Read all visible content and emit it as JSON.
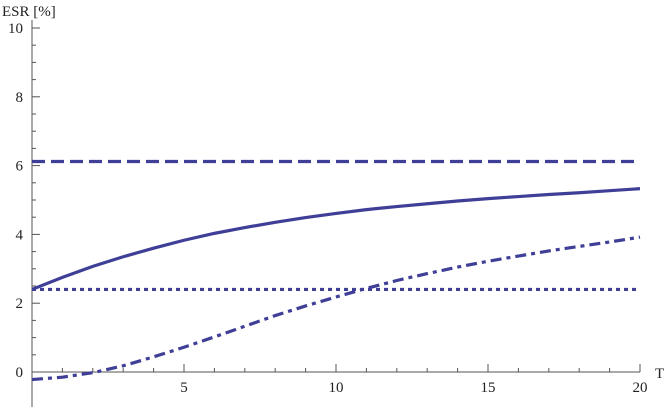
{
  "chart_data": {
    "type": "line",
    "xlabel": "T",
    "ylabel": "ESR [%]",
    "xlim": [
      0,
      20
    ],
    "ylim": [
      0,
      10
    ],
    "x_ticks": [
      5,
      10,
      15,
      20
    ],
    "y_ticks": [
      0,
      2,
      4,
      6,
      8,
      10
    ],
    "grid": false,
    "legend": "none",
    "line_color": "#3f3f98",
    "series": [
      {
        "style": "dashed",
        "x": [
          0,
          20
        ],
        "y": [
          6.12,
          6.12
        ]
      },
      {
        "style": "dotted",
        "x": [
          0,
          20
        ],
        "y": [
          2.4,
          2.4
        ]
      },
      {
        "style": "solid",
        "x": [
          0,
          1,
          2,
          3,
          4,
          5,
          6,
          7,
          8,
          9,
          10,
          11,
          12,
          13,
          14,
          15,
          16,
          17,
          18,
          19,
          20
        ],
        "y": [
          2.4,
          2.75,
          3.07,
          3.35,
          3.6,
          3.83,
          4.03,
          4.2,
          4.35,
          4.49,
          4.61,
          4.72,
          4.81,
          4.89,
          4.97,
          5.04,
          5.1,
          5.16,
          5.21,
          5.27,
          5.33
        ]
      },
      {
        "style": "dash-dot",
        "x": [
          0,
          1,
          2,
          3,
          4,
          5,
          6,
          7,
          8,
          9,
          10,
          11,
          12,
          13,
          14,
          15,
          16,
          17,
          18,
          19,
          20
        ],
        "y": [
          -0.22,
          -0.15,
          -0.02,
          0.18,
          0.44,
          0.72,
          1.02,
          1.33,
          1.64,
          1.92,
          2.18,
          2.43,
          2.66,
          2.86,
          3.05,
          3.22,
          3.37,
          3.52,
          3.65,
          3.78,
          3.92
        ]
      }
    ]
  }
}
